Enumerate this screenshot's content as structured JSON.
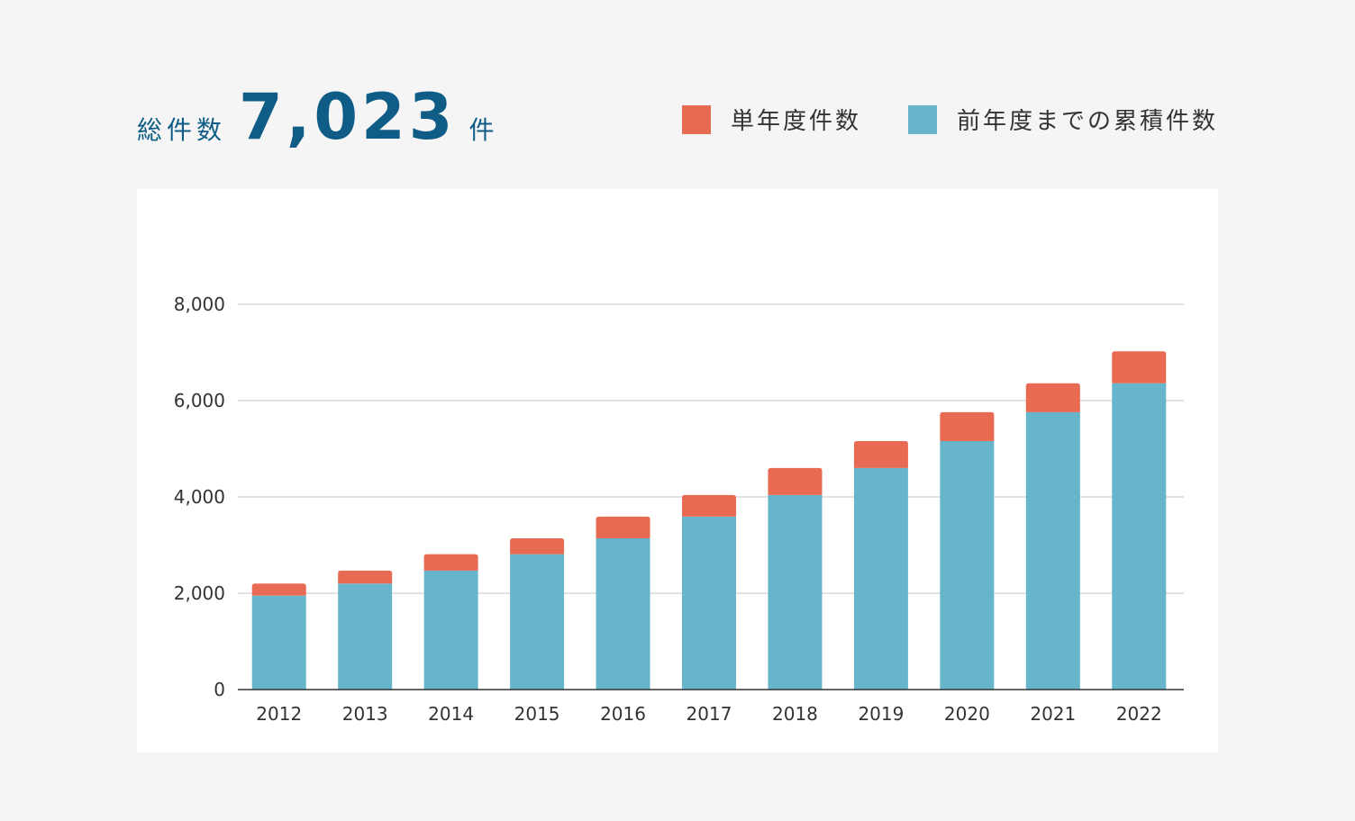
{
  "header": {
    "total_label": "総件数",
    "total_value": "7,023",
    "total_unit": "件"
  },
  "legend": {
    "items": [
      {
        "label": "単年度件数",
        "color": "#e86a52"
      },
      {
        "label": "前年度までの累積件数",
        "color": "#67b5ca"
      }
    ]
  },
  "chart_data": {
    "type": "bar",
    "stacked": true,
    "categories": [
      "2012",
      "2013",
      "2014",
      "2015",
      "2016",
      "2017",
      "2018",
      "2019",
      "2020",
      "2021",
      "2022"
    ],
    "series": [
      {
        "name": "前年度までの累積件数",
        "color": "#67b5ca",
        "values": [
          1950,
          2200,
          2470,
          2810,
          3140,
          3590,
          4040,
          4600,
          5160,
          5760,
          6360
        ]
      },
      {
        "name": "単年度件数",
        "color": "#e86a52",
        "values": [
          250,
          270,
          340,
          330,
          450,
          450,
          560,
          560,
          600,
          600,
          663
        ]
      }
    ],
    "ylim": [
      0,
      8000
    ],
    "yticks": [
      0,
      2000,
      4000,
      6000,
      8000
    ],
    "ytick_labels": [
      "0",
      "2,000",
      "4,000",
      "6,000",
      "8,000"
    ],
    "grid": true,
    "title": "",
    "xlabel": "",
    "ylabel": ""
  }
}
